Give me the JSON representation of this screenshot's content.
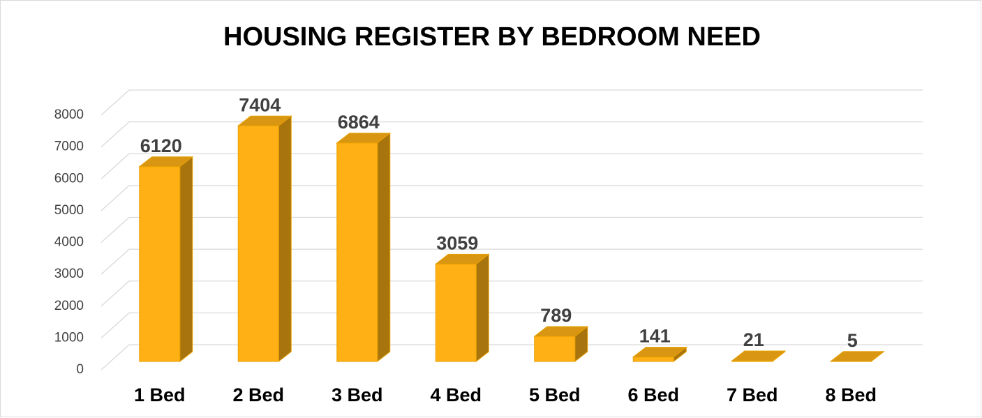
{
  "chart_data": {
    "type": "bar3d",
    "title": "HOUSING REGISTER BY BEDROOM NEED",
    "categories": [
      "1 Bed",
      "2 Bed",
      "3 Bed",
      "4 Bed",
      "5 Bed",
      "6 Bed",
      "7 Bed",
      "8 Bed"
    ],
    "values": [
      6120,
      7404,
      6864,
      3059,
      789,
      141,
      21,
      5
    ],
    "color": "#ffb015",
    "ylim": [
      0,
      8000
    ],
    "yticks": [
      0,
      1000,
      2000,
      3000,
      4000,
      5000,
      6000,
      7000,
      8000
    ],
    "grid": true,
    "data_labels": true
  }
}
